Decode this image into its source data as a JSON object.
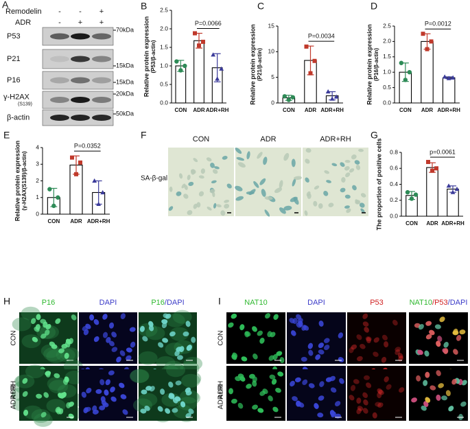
{
  "chart_data": [
    {
      "type": "bar",
      "panel": "B",
      "ylabel": [
        "Relative protein expression",
        "(P53/β-actin)"
      ],
      "categories": [
        "CON",
        "ADR",
        "ADR+RH"
      ],
      "values": [
        1.0,
        1.68,
        0.95
      ],
      "errors": [
        0.15,
        0.2,
        0.38
      ],
      "points": [
        [
          1.12,
          0.88,
          1.0
        ],
        [
          1.88,
          1.55,
          1.65
        ],
        [
          1.3,
          0.65,
          0.92
        ]
      ],
      "colors": [
        "#2e8b57",
        "#c0392b",
        "#3b3b9a"
      ],
      "annotation": "P=0.0066",
      "ylim": [
        0,
        2.5
      ],
      "yticks": [
        {
          "value": 0,
          "label": "0.0"
        },
        {
          "value": 0.5,
          "label": "0.5"
        },
        {
          "value": 1,
          "label": "1.0"
        },
        {
          "value": 1.5,
          "label": "1.5"
        },
        {
          "value": 2,
          "label": "2.0"
        },
        {
          "value": 2.5,
          "label": "2.5"
        }
      ]
    },
    {
      "type": "bar",
      "panel": "C",
      "ylabel": [
        "Relative protein expression",
        "(P21/β-actin)"
      ],
      "categories": [
        "CON",
        "ADR",
        "ADR+RH"
      ],
      "values": [
        1.0,
        8.3,
        1.4
      ],
      "errors": [
        0.5,
        2.8,
        0.8
      ],
      "points": [
        [
          1.3,
          0.6,
          1.1
        ],
        [
          11.0,
          5.8,
          8.2
        ],
        [
          2.2,
          0.8,
          1.2
        ]
      ],
      "colors": [
        "#2e8b57",
        "#c0392b",
        "#3b3b9a"
      ],
      "annotation": "P=0.0034",
      "ylim": [
        0,
        15
      ],
      "yticks": [
        0,
        5,
        10,
        15
      ]
    },
    {
      "type": "bar",
      "panel": "D",
      "ylabel": [
        "Relative protein expression",
        "(P16/β-actin)"
      ],
      "categories": [
        "CON",
        "ADR",
        "ADR+RH"
      ],
      "values": [
        1.0,
        2.0,
        0.82
      ],
      "errors": [
        0.3,
        0.25,
        0.03
      ],
      "points": [
        [
          1.3,
          0.75,
          1.0
        ],
        [
          2.25,
          1.75,
          2.0
        ],
        [
          0.85,
          0.8,
          0.82
        ]
      ],
      "colors": [
        "#2e8b57",
        "#c0392b",
        "#3b3b9a"
      ],
      "annotation": "P=0.0012",
      "ylim": [
        0,
        2.5
      ],
      "yticks": [
        {
          "value": 0,
          "label": "0.0"
        },
        {
          "value": 0.5,
          "label": "0.5"
        },
        {
          "value": 1,
          "label": "1.0"
        },
        {
          "value": 1.5,
          "label": "1.5"
        },
        {
          "value": 2,
          "label": "2.0"
        },
        {
          "value": 2.5,
          "label": "2.5"
        }
      ]
    },
    {
      "type": "bar",
      "panel": "E",
      "ylabel": [
        "Relative protein expression",
        "(γ-H2AX(S139)/β-actin)"
      ],
      "categories": [
        "CON",
        "ADR",
        "ADR+RH"
      ],
      "values": [
        1.0,
        2.95,
        1.3
      ],
      "errors": [
        0.55,
        0.55,
        0.7
      ],
      "points": [
        [
          1.5,
          0.5,
          1.0
        ],
        [
          3.4,
          2.4,
          3.1
        ],
        [
          2.0,
          0.6,
          1.3
        ]
      ],
      "colors": [
        "#2e8b57",
        "#c0392b",
        "#3b3b9a"
      ],
      "annotation": "P=0.0352",
      "ylim": [
        0,
        4
      ],
      "yticks": [
        0,
        1,
        2,
        3,
        4
      ]
    },
    {
      "type": "bar",
      "panel": "G",
      "ylabel": [
        "The proportion of positive cells"
      ],
      "categories": [
        "CON",
        "ADR",
        "ADR+RH"
      ],
      "values": [
        0.26,
        0.61,
        0.34
      ],
      "errors": [
        0.05,
        0.06,
        0.04
      ],
      "points": [
        [
          0.3,
          0.22,
          0.27
        ],
        [
          0.68,
          0.57,
          0.6
        ],
        [
          0.38,
          0.3,
          0.34
        ]
      ],
      "colors": [
        "#2e8b57",
        "#c0392b",
        "#3b3b9a"
      ],
      "annotation": "p=0.0061",
      "ylim": [
        0,
        0.8
      ],
      "yticks": [
        {
          "value": 0,
          "label": "0.0"
        },
        {
          "value": 0.2,
          "label": "0.2"
        },
        {
          "value": 0.4,
          "label": "0.4"
        },
        {
          "value": 0.6,
          "label": "0.6"
        },
        {
          "value": 0.8,
          "label": "0.8"
        }
      ]
    }
  ],
  "panel_a": {
    "letter": "A",
    "treatments": [
      {
        "name": "Remodelin",
        "signs": [
          "-",
          "-",
          "+"
        ]
      },
      {
        "name": "ADR",
        "signs": [
          "-",
          "+",
          "+"
        ]
      }
    ],
    "blots": [
      {
        "label": "P53",
        "mw": "70kDa"
      },
      {
        "label": "P21",
        "mw": "15kDa"
      },
      {
        "label": "P16",
        "mw": "15kDa"
      },
      {
        "label": "γ-H2AX",
        "sublabel": "(S139)",
        "mw": "20kDa"
      },
      {
        "label": "β-actin",
        "mw": "50kDa"
      }
    ]
  },
  "panel_f": {
    "letter": "F",
    "columns": [
      "CON",
      "ADR",
      "ADR+RH"
    ],
    "stain": "SA-β-gal"
  },
  "panel_h": {
    "letter": "H",
    "rows": [
      "CON",
      "ADR",
      "ADR+RH"
    ],
    "columns": [
      [
        {
          "text": "P16",
          "color": "#2eb82e"
        }
      ],
      [
        {
          "text": "DAPI",
          "color": "#3a3ac8"
        }
      ],
      [
        {
          "text": "P16",
          "color": "#2eb82e"
        },
        {
          "text": "/DAPI",
          "color": "#3a3ac8"
        }
      ]
    ]
  },
  "panel_i": {
    "letter": "I",
    "rows": [
      "CON",
      "ADR",
      "ADR+RH"
    ],
    "columns": [
      [
        {
          "text": "NAT10",
          "color": "#2eb82e"
        }
      ],
      [
        {
          "text": "DAPI",
          "color": "#3a3ac8"
        }
      ],
      [
        {
          "text": "P53",
          "color": "#d02020"
        }
      ],
      [
        {
          "text": "NAT10",
          "color": "#2eb82e"
        },
        {
          "text": "/P53",
          "color": "#d02020"
        },
        {
          "text": "/DAPI",
          "color": "#3a3ac8"
        }
      ]
    ]
  }
}
